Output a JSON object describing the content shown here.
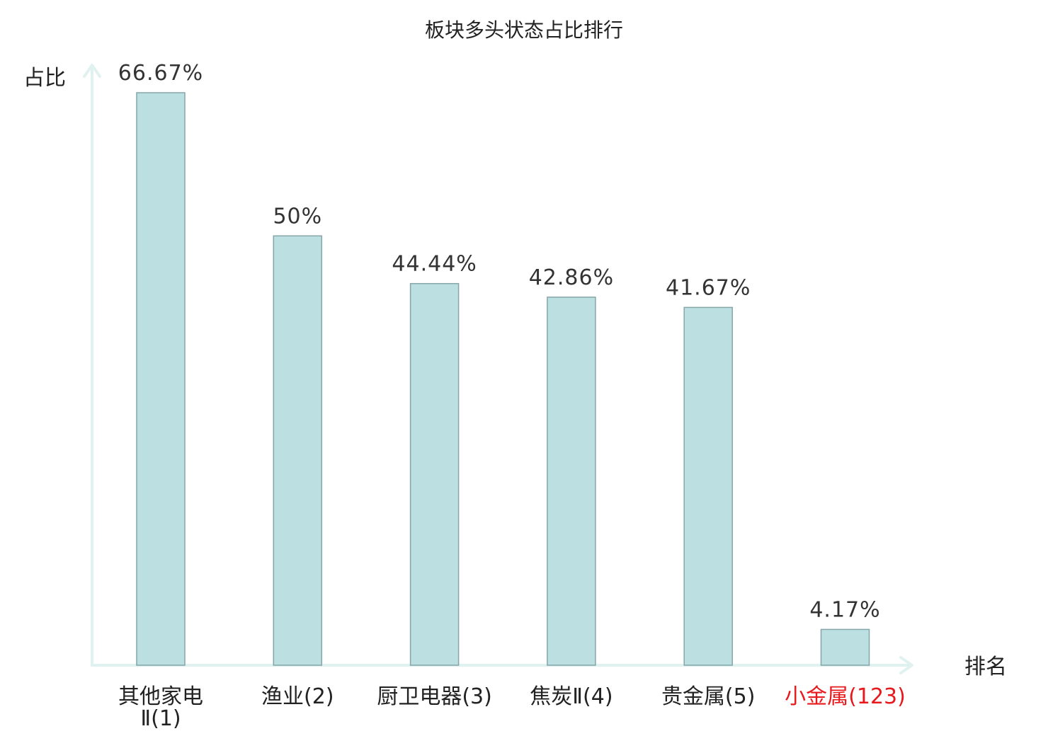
{
  "chart_data": {
    "type": "bar",
    "title": "板块多头状态占比排行",
    "ylabel": "占比",
    "xlabel": "排名",
    "ylim": [
      0,
      66.67
    ],
    "grid": false,
    "legend": "none",
    "categories": [
      {
        "name": "其他家电",
        "extra": "Ⅱ(1)",
        "highlight": false
      },
      {
        "name": "渔业",
        "extra": "(2)",
        "highlight": false
      },
      {
        "name": "厨卫电器",
        "extra": "(3)",
        "highlight": false
      },
      {
        "name": "焦炭",
        "extra": "Ⅱ(4)",
        "highlight": false
      },
      {
        "name": "贵金属",
        "extra": "(5)",
        "highlight": false
      },
      {
        "name": "小金属",
        "extra": "(123)",
        "highlight": true
      }
    ],
    "values": [
      66.67,
      50,
      44.44,
      42.86,
      41.67,
      4.17
    ],
    "value_labels": [
      "66.67%",
      "50%",
      "44.44%",
      "42.86%",
      "41.67%",
      "4.17%"
    ],
    "colors": {
      "bar_fill": "#bce0e2",
      "bar_stroke": "#85a6a8",
      "axis": "#e0f2ef",
      "label_text": "#222222",
      "value_text": "#333333",
      "highlight_text": "#e8191c"
    }
  }
}
